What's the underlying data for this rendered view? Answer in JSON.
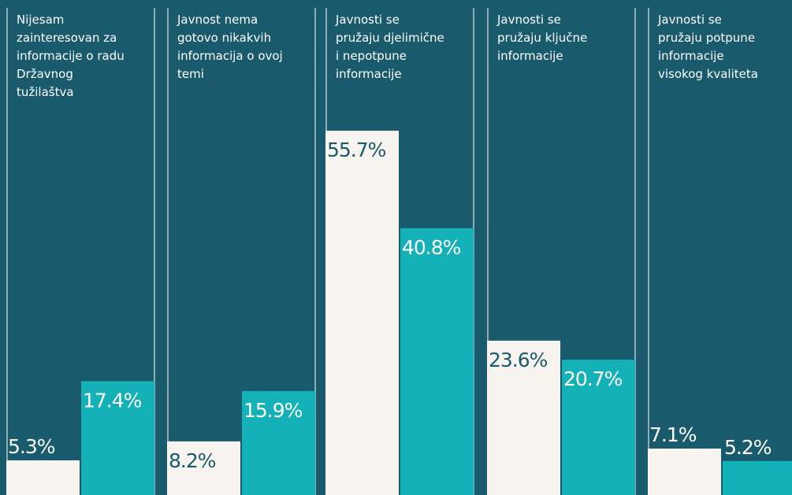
{
  "chart_data": {
    "type": "bar",
    "categories": [
      "Nijesam zainteresovan za informacije o radu Državnog tužilaštva",
      "Javnost nema gotovo nikakvih informacija o ovoj temi",
      "Javnosti se pružaju djelimične i nepotpune informacije",
      "Javnosti se pružaju ključne informacije",
      "Javnosti se pružaju potpune informacije visokog kvaliteta"
    ],
    "series": [
      {
        "color": "#f7f3ee",
        "values": [
          5.3,
          8.2,
          55.7,
          23.6,
          7.1
        ],
        "value_labels": [
          "5.3%",
          "8.2%",
          "55.7%",
          "23.6%",
          "7.1%"
        ]
      },
      {
        "color": "#14b1b9",
        "values": [
          17.4,
          15.9,
          40.8,
          20.7,
          5.2
        ],
        "value_labels": [
          "17.4%",
          "15.9%",
          "40.8%",
          "20.7%",
          "5.2%"
        ]
      }
    ]
  }
}
